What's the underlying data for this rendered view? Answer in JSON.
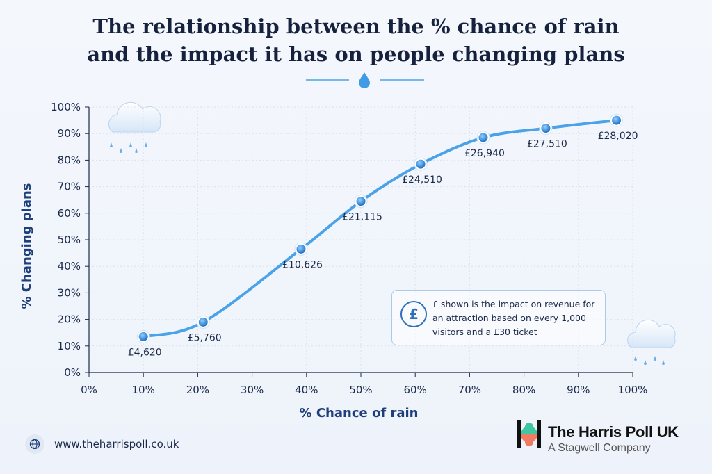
{
  "page": {
    "title_line1": "The relationship between the % chance of rain",
    "title_line2": "and the impact it has on people changing plans"
  },
  "note": {
    "symbol": "£",
    "text": "£ shown is the impact on revenue for an attraction based on every 1,000 visitors and a £30 ticket"
  },
  "footer": {
    "url": "www.theharrispoll.co.uk",
    "brand_name": "The Harris Poll UK",
    "brand_sub": "A Stagwell Company"
  },
  "colors": {
    "line": "#4aa3e8",
    "point": "#2f86d6",
    "axis_text": "#1e3f7a",
    "logo_teal": "#3fc7a4",
    "logo_coral": "#f07a62"
  },
  "icons": [
    "droplet-icon",
    "cloud-rain-icon",
    "pound-icon",
    "globe-icon",
    "harris-poll-logo-icon"
  ],
  "chart_data": {
    "type": "line",
    "title": "The relationship between the % chance of rain and the impact it has on people changing plans",
    "xlabel": "% Chance of rain",
    "ylabel": "% Changing plans",
    "xlim": [
      0,
      100
    ],
    "ylim": [
      0,
      100
    ],
    "x_ticks": [
      "0%",
      "10%",
      "20%",
      "30%",
      "40%",
      "50%",
      "60%",
      "70%",
      "80%",
      "90%",
      "100%"
    ],
    "y_ticks": [
      "0%",
      "10%",
      "20%",
      "30%",
      "40%",
      "50%",
      "60%",
      "70%",
      "80%",
      "90%",
      "100%"
    ],
    "grid": true,
    "points": [
      {
        "x": 10,
        "y": 13.5,
        "label": "£4,620"
      },
      {
        "x": 21,
        "y": 19,
        "label": "£5,760"
      },
      {
        "x": 39,
        "y": 46.5,
        "label": "£10,626"
      },
      {
        "x": 50,
        "y": 64.5,
        "label": "£21,115"
      },
      {
        "x": 61,
        "y": 78.5,
        "label": "£24,510"
      },
      {
        "x": 72.5,
        "y": 88.5,
        "label": "£26,940"
      },
      {
        "x": 84,
        "y": 92,
        "label": "£27,510"
      },
      {
        "x": 97,
        "y": 95,
        "label": "£28,020"
      }
    ]
  }
}
